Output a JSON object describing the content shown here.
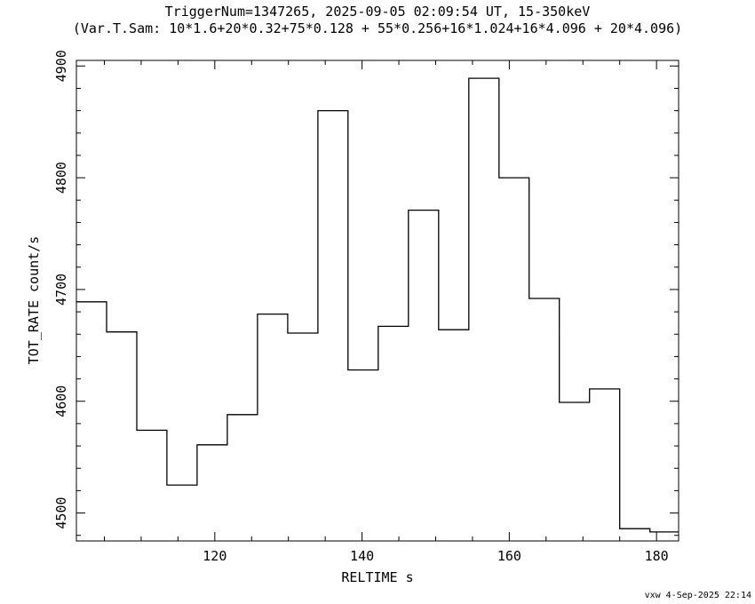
{
  "chart_data": {
    "type": "line",
    "step": true,
    "title": "TriggerNum=1347265, 2025-09-05 02:09:54 UT, 15-350keV",
    "subtitle": "(Var.T.Sam: 10*1.6+20*0.32+75*0.128  +  55*0.256+16*1.024+16*4.096  +  20*4.096)",
    "xlabel": "RELTIME  s",
    "ylabel": "TOT_RATE  count/s",
    "footer": "vxw  4-Sep-2025 22:14",
    "xlim": [
      101.2,
      183.0
    ],
    "ylim": [
      4475,
      4905
    ],
    "grid": false,
    "x_ticks": [
      {
        "value": 120,
        "label": "120"
      },
      {
        "value": 140,
        "label": "140"
      },
      {
        "value": 160,
        "label": "160"
      },
      {
        "value": 180,
        "label": "180"
      }
    ],
    "y_ticks": [
      {
        "value": 4500,
        "label": "4500"
      },
      {
        "value": 4600,
        "label": "4600"
      },
      {
        "value": 4700,
        "label": "4700"
      },
      {
        "value": 4800,
        "label": "4800"
      },
      {
        "value": 4900,
        "label": "4900"
      }
    ],
    "bin_edges": [
      101.2,
      105.3,
      109.4,
      113.5,
      117.6,
      121.7,
      125.8,
      129.9,
      134.0,
      138.1,
      142.2,
      146.3,
      150.4,
      154.5,
      158.6,
      162.7,
      166.8,
      170.9,
      175.0,
      179.1,
      183.0
    ],
    "values": [
      4689,
      4662,
      4574,
      4525,
      4561,
      4588,
      4678,
      4661,
      4860,
      4628,
      4667,
      4771,
      4664,
      4889,
      4800,
      4692,
      4599,
      4611,
      4486,
      4483
    ]
  }
}
